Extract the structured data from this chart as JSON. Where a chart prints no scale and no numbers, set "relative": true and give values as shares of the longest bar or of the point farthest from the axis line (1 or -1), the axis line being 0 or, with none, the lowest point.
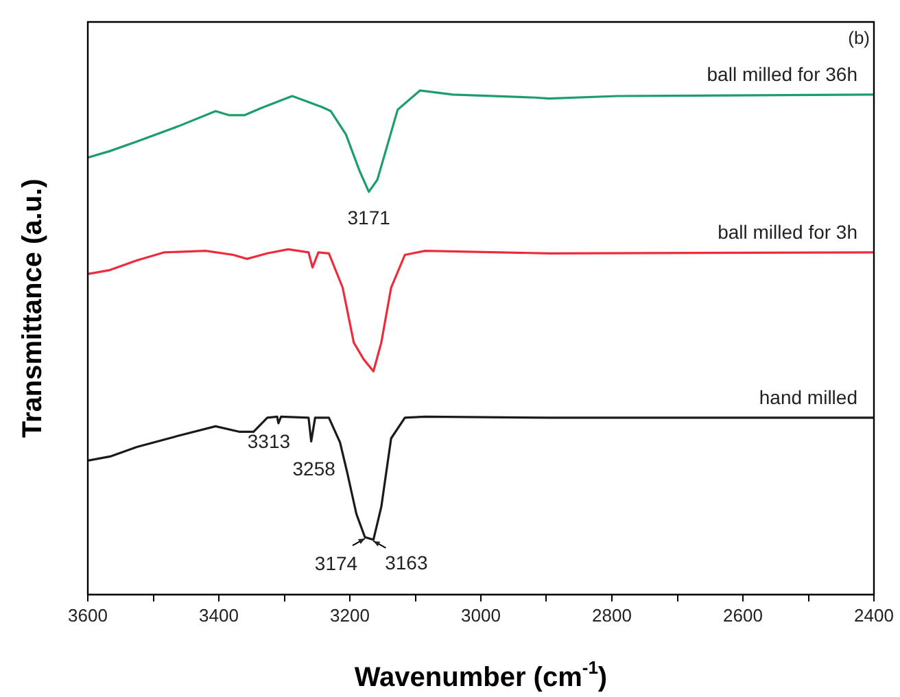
{
  "chart_data": {
    "type": "line",
    "relative": true,
    "xlabel": "Wavenumber (cm$^{-1}$)",
    "ylabel": "Transmittance (a.u.)",
    "xlim": [
      3600,
      2400
    ],
    "xticks": [
      3600,
      {
        "value": 3500,
        "label": null
      },
      3400,
      {
        "value": 3300,
        "label": null
      },
      3200,
      {
        "value": 3100,
        "label": null
      },
      3000,
      {
        "value": 2900,
        "label": null
      },
      2800,
      {
        "value": 2700,
        "label": null
      },
      2600,
      {
        "value": 2500,
        "label": null
      },
      2400
    ],
    "grid": false,
    "legend": false,
    "marker": "none",
    "line_style": "solid",
    "series": [
      {
        "name": "ball milled for 36h",
        "color": "#1a9e6a",
        "x": [
          3600,
          3566,
          3525,
          3462,
          3405,
          3384,
          3361,
          3336,
          3288,
          3242,
          3229,
          3206,
          3185,
          3171,
          3158,
          3127,
          3093,
          3043,
          2917,
          2896,
          2792,
          2400
        ],
        "values": [
          0.867,
          0.88,
          0.899,
          0.929,
          0.959,
          0.951,
          0.951,
          0.965,
          0.989,
          0.967,
          0.959,
          0.913,
          0.84,
          0.799,
          0.823,
          0.962,
          1.0,
          0.992,
          0.986,
          0.984,
          0.989,
          0.992
        ]
      },
      {
        "name": "ball milled for 3h",
        "color": "#ee2b3b",
        "x": [
          3600,
          3566,
          3525,
          3483,
          3420,
          3378,
          3357,
          3326,
          3294,
          3263,
          3257,
          3248,
          3232,
          3211,
          3194,
          3179,
          3164,
          3152,
          3137,
          3116,
          3085,
          2896,
          2400
        ],
        "values": [
          0.636,
          0.644,
          0.663,
          0.679,
          0.682,
          0.674,
          0.666,
          0.677,
          0.685,
          0.679,
          0.649,
          0.679,
          0.677,
          0.609,
          0.5,
          0.467,
          0.443,
          0.5,
          0.609,
          0.674,
          0.682,
          0.677,
          0.679
        ]
      },
      {
        "name": "hand milled",
        "color": "#1a1a1a",
        "x": [
          3600,
          3566,
          3525,
          3462,
          3405,
          3368,
          3347,
          3326,
          3311,
          3309,
          3305,
          3263,
          3259,
          3253,
          3232,
          3215,
          3204,
          3190,
          3177,
          3164,
          3152,
          3137,
          3116,
          3085,
          2896,
          2400
        ],
        "values": [
          0.266,
          0.274,
          0.293,
          0.315,
          0.334,
          0.323,
          0.323,
          0.351,
          0.353,
          0.34,
          0.353,
          0.351,
          0.304,
          0.351,
          0.351,
          0.302,
          0.242,
          0.16,
          0.114,
          0.109,
          0.174,
          0.31,
          0.351,
          0.353,
          0.351,
          0.351
        ]
      }
    ],
    "annotations": [
      "(b)",
      {
        "text": "3171",
        "x": 3171,
        "y": 0.799
      },
      {
        "text": "3313",
        "x": 3309,
        "y": 0.34
      },
      {
        "text": "3258",
        "x": 3259,
        "y": 0.304
      },
      {
        "text": "3174",
        "x": 3177,
        "y": 0.114
      },
      {
        "text": "3163",
        "x": 3164,
        "y": 0.109
      }
    ]
  }
}
